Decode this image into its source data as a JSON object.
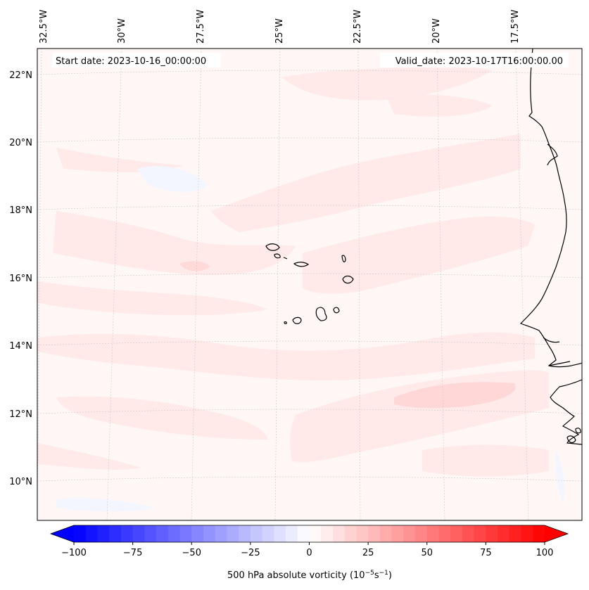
{
  "header": {
    "start_date": "Start date: 2023-10-16_00:00:00",
    "valid_date": "Valid_date: 2023-10-17T16:00:00.00"
  },
  "longitude_labels": [
    "32.5°W",
    "30°W",
    "27.5°W",
    "25°W",
    "22.5°W",
    "20°W",
    "17.5°W"
  ],
  "latitude_labels": [
    "22°N",
    "20°N",
    "18°N",
    "16°N",
    "14°N",
    "12°N",
    "10°N"
  ],
  "colorbar": {
    "label": "500 hPa absolute vorticity (10",
    "label_exp1": "−5",
    "label_mid": "s",
    "label_exp2": "−1",
    "label_end": ")",
    "ticks": [
      "−100",
      "−75",
      "−50",
      "−25",
      "0",
      "25",
      "50",
      "75",
      "100"
    ],
    "min": -100,
    "max": 100,
    "step": 5
  },
  "colors": {
    "negative_max": "#0000ff",
    "positive_max": "#ff0000",
    "neutral": "#ffffff",
    "coastline": "#000000",
    "gridline": "#c8c8c8"
  }
}
